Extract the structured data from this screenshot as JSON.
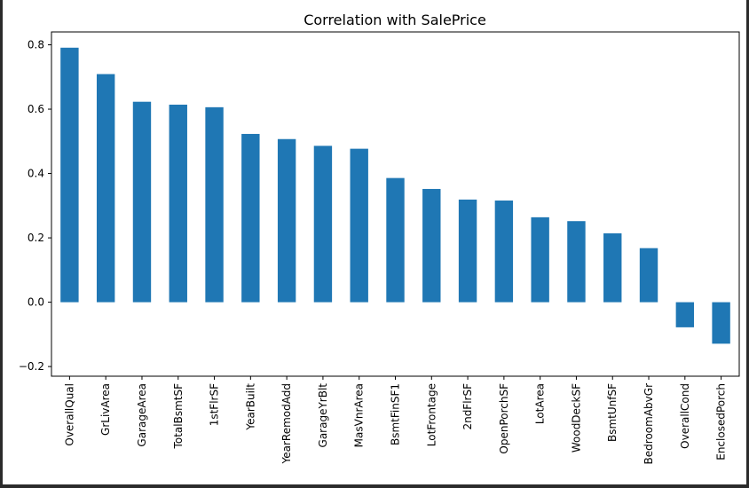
{
  "chart_data": {
    "type": "bar",
    "title": "Correlation with SalePrice",
    "xlabel": "",
    "ylabel": "",
    "categories": [
      "OverallQual",
      "GrLivArea",
      "GarageArea",
      "TotalBsmtSF",
      "1stFlrSF",
      "YearBuilt",
      "YearRemodAdd",
      "GarageYrBlt",
      "MasVnrArea",
      "BsmtFinSF1",
      "LotFrontage",
      "2ndFlrSF",
      "OpenPorchSF",
      "LotArea",
      "WoodDeckSF",
      "BsmtUnfSF",
      "BedroomAbvGr",
      "OverallCond",
      "EnclosedPorch"
    ],
    "values": [
      0.791,
      0.709,
      0.623,
      0.614,
      0.606,
      0.523,
      0.507,
      0.486,
      0.477,
      0.386,
      0.352,
      0.319,
      0.316,
      0.264,
      0.252,
      0.214,
      0.168,
      -0.078,
      -0.129
    ],
    "ylim": [
      -0.23,
      0.84
    ],
    "yticks": [
      -0.2,
      0.0,
      0.2,
      0.4,
      0.6,
      0.8
    ],
    "ytick_labels": [
      "−0.2",
      "0.0",
      "0.2",
      "0.4",
      "0.6",
      "0.8"
    ],
    "bar_color": "#1f77b4",
    "grid": false,
    "legend": "none"
  }
}
